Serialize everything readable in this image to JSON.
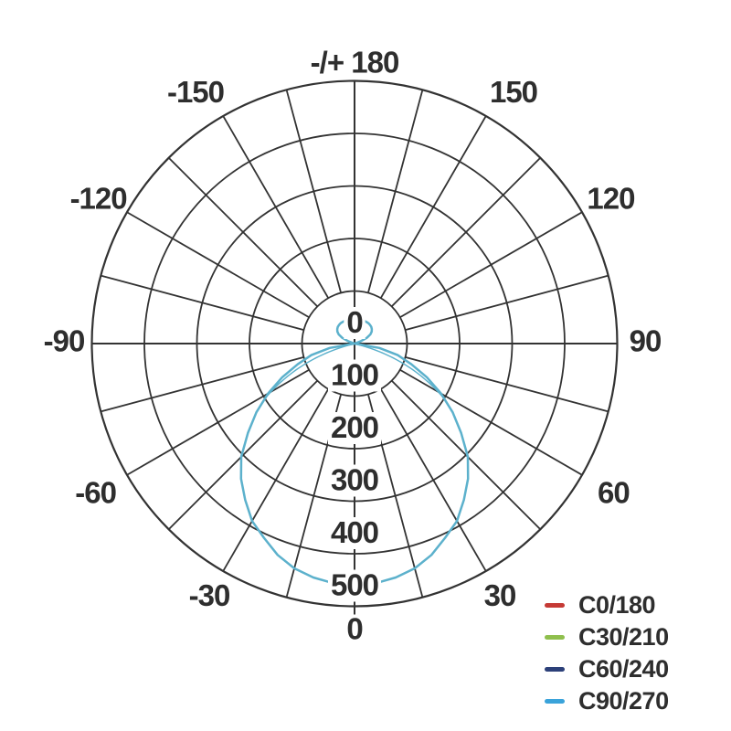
{
  "figure": {
    "background": "#ffffff",
    "colors": {
      "grid": "#333333",
      "text": "#2e2e2e",
      "curve_stroke": "#5cb1cc"
    }
  },
  "chart_data": {
    "type": "polar-line",
    "title": "",
    "description": "Luminous intensity distribution polar diagram",
    "angle_axis": {
      "unit": "deg",
      "zero_direction": "down",
      "positive_direction": "right",
      "tick_step": 30,
      "tick_labels": [
        {
          "angle": 180,
          "label": "-/+ 180"
        },
        {
          "angle": -150,
          "label": "-150"
        },
        {
          "angle": 150,
          "label": "150"
        },
        {
          "angle": -120,
          "label": "-120"
        },
        {
          "angle": 120,
          "label": "120"
        },
        {
          "angle": -90,
          "label": "-90"
        },
        {
          "angle": 90,
          "label": "90"
        },
        {
          "angle": -60,
          "label": "-60"
        },
        {
          "angle": 60,
          "label": "60"
        },
        {
          "angle": -30,
          "label": "-30"
        },
        {
          "angle": 30,
          "label": "30"
        },
        {
          "angle": 0,
          "label": "0"
        }
      ]
    },
    "radial_axis": {
      "min": 0,
      "max": 500,
      "tick_step": 100,
      "tick_labels": [
        "0",
        "100",
        "200",
        "300",
        "400",
        "500"
      ]
    },
    "grid": {
      "rings": [
        100,
        200,
        300,
        400,
        500
      ],
      "spoke_step_deg": 15,
      "spokes_start_at_ring": 100,
      "grid_on": true
    },
    "legend": {
      "position": "bottom-right"
    },
    "series": [
      {
        "name": "C0/180",
        "color": "#c53a35",
        "curve_visible": false
      },
      {
        "name": "C30/210",
        "color": "#8fbf4d",
        "curve_visible": false
      },
      {
        "name": "C60/240",
        "color": "#2c4079",
        "curve_visible": false
      },
      {
        "name": "C90/270",
        "color": "#3aa3da",
        "curve_visible": true,
        "curve_stroke": "#5cb1cc",
        "points": [
          [
            -180,
            35
          ],
          [
            -177,
            39
          ],
          [
            -174,
            44
          ],
          [
            -170,
            47
          ],
          [
            -165,
            48
          ],
          [
            -160,
            48
          ],
          [
            -155,
            47
          ],
          [
            -150,
            47
          ],
          [
            -145,
            47
          ],
          [
            -140,
            46
          ],
          [
            -135,
            45
          ],
          [
            -130,
            43
          ],
          [
            -125,
            40
          ],
          [
            -120,
            35
          ],
          [
            -115,
            26
          ],
          [
            -110,
            12
          ],
          [
            -105,
            0
          ],
          [
            -95,
            0
          ],
          [
            -85,
            0
          ],
          [
            -80,
            48
          ],
          [
            -75,
            85
          ],
          [
            -70,
            115
          ],
          [
            -65,
            152
          ],
          [
            -60,
            190
          ],
          [
            -55,
            228
          ],
          [
            -50,
            265
          ],
          [
            -45,
            305
          ],
          [
            -40,
            336
          ],
          [
            -35,
            363
          ],
          [
            -30,
            390
          ],
          [
            -25,
            408
          ],
          [
            -20,
            428
          ],
          [
            -15,
            443
          ],
          [
            -10,
            452
          ],
          [
            -5,
            458
          ],
          [
            0,
            460
          ],
          [
            5,
            458
          ],
          [
            10,
            452
          ],
          [
            15,
            443
          ],
          [
            20,
            428
          ],
          [
            25,
            408
          ],
          [
            30,
            390
          ],
          [
            35,
            363
          ],
          [
            40,
            336
          ],
          [
            45,
            305
          ],
          [
            50,
            265
          ],
          [
            55,
            228
          ],
          [
            60,
            190
          ],
          [
            65,
            152
          ],
          [
            70,
            115
          ],
          [
            75,
            85
          ],
          [
            80,
            48
          ],
          [
            85,
            0
          ],
          [
            95,
            0
          ],
          [
            105,
            0
          ],
          [
            110,
            12
          ],
          [
            115,
            26
          ],
          [
            120,
            35
          ],
          [
            125,
            40
          ],
          [
            130,
            43
          ],
          [
            135,
            45
          ],
          [
            140,
            46
          ],
          [
            145,
            47
          ],
          [
            150,
            47
          ],
          [
            155,
            47
          ],
          [
            160,
            48
          ],
          [
            165,
            48
          ],
          [
            170,
            47
          ],
          [
            174,
            44
          ],
          [
            177,
            39
          ],
          [
            180,
            35
          ]
        ],
        "transition_chords": [
          {
            "ctrl": [
              76,
              110
            ],
            "end": [
              58,
              205
            ]
          },
          {
            "ctrl": [
              -76,
              110
            ],
            "end": [
              -58,
              205
            ]
          }
        ]
      }
    ]
  }
}
